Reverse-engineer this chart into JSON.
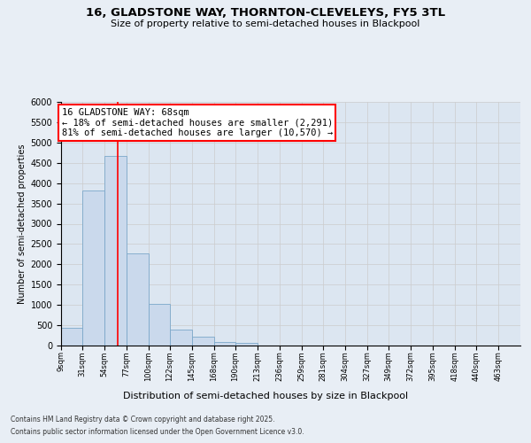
{
  "title1": "16, GLADSTONE WAY, THORNTON-CLEVELEYS, FY5 3TL",
  "title2": "Size of property relative to semi-detached houses in Blackpool",
  "xlabel": "Distribution of semi-detached houses by size in Blackpool",
  "ylabel": "Number of semi-detached properties",
  "property_label": "16 GLADSTONE WAY: 68sqm",
  "annotation_text1": "← 18% of semi-detached houses are smaller (2,291)",
  "annotation_text2": "81% of semi-detached houses are larger (10,570) →",
  "categories": [
    "9sqm",
    "31sqm",
    "54sqm",
    "77sqm",
    "100sqm",
    "122sqm",
    "145sqm",
    "168sqm",
    "190sqm",
    "213sqm",
    "236sqm",
    "259sqm",
    "281sqm",
    "304sqm",
    "327sqm",
    "349sqm",
    "372sqm",
    "395sqm",
    "418sqm",
    "440sqm",
    "463sqm"
  ],
  "bar_left_edges": [
    9,
    31,
    54,
    77,
    100,
    122,
    145,
    168,
    190,
    213,
    236,
    259,
    281,
    304,
    327,
    349,
    372,
    395,
    418,
    440,
    463
  ],
  "bar_widths": [
    22,
    23,
    23,
    23,
    22,
    23,
    23,
    22,
    23,
    23,
    23,
    22,
    23,
    23,
    22,
    23,
    23,
    23,
    22,
    23,
    23
  ],
  "values": [
    430,
    3820,
    4680,
    2280,
    1020,
    400,
    210,
    90,
    55,
    0,
    0,
    0,
    0,
    0,
    0,
    0,
    0,
    0,
    0,
    0,
    0
  ],
  "bar_color": "#cad9ec",
  "bar_edge_color": "#7ba7c9",
  "vline_x": 68,
  "vline_color": "red",
  "ylim": [
    0,
    6000
  ],
  "grid_color": "#cccccc",
  "bg_color": "#e8eef5",
  "plot_bg_color": "#dce6f1",
  "footnote1": "Contains HM Land Registry data © Crown copyright and database right 2025.",
  "footnote2": "Contains public sector information licensed under the Open Government Licence v3.0."
}
